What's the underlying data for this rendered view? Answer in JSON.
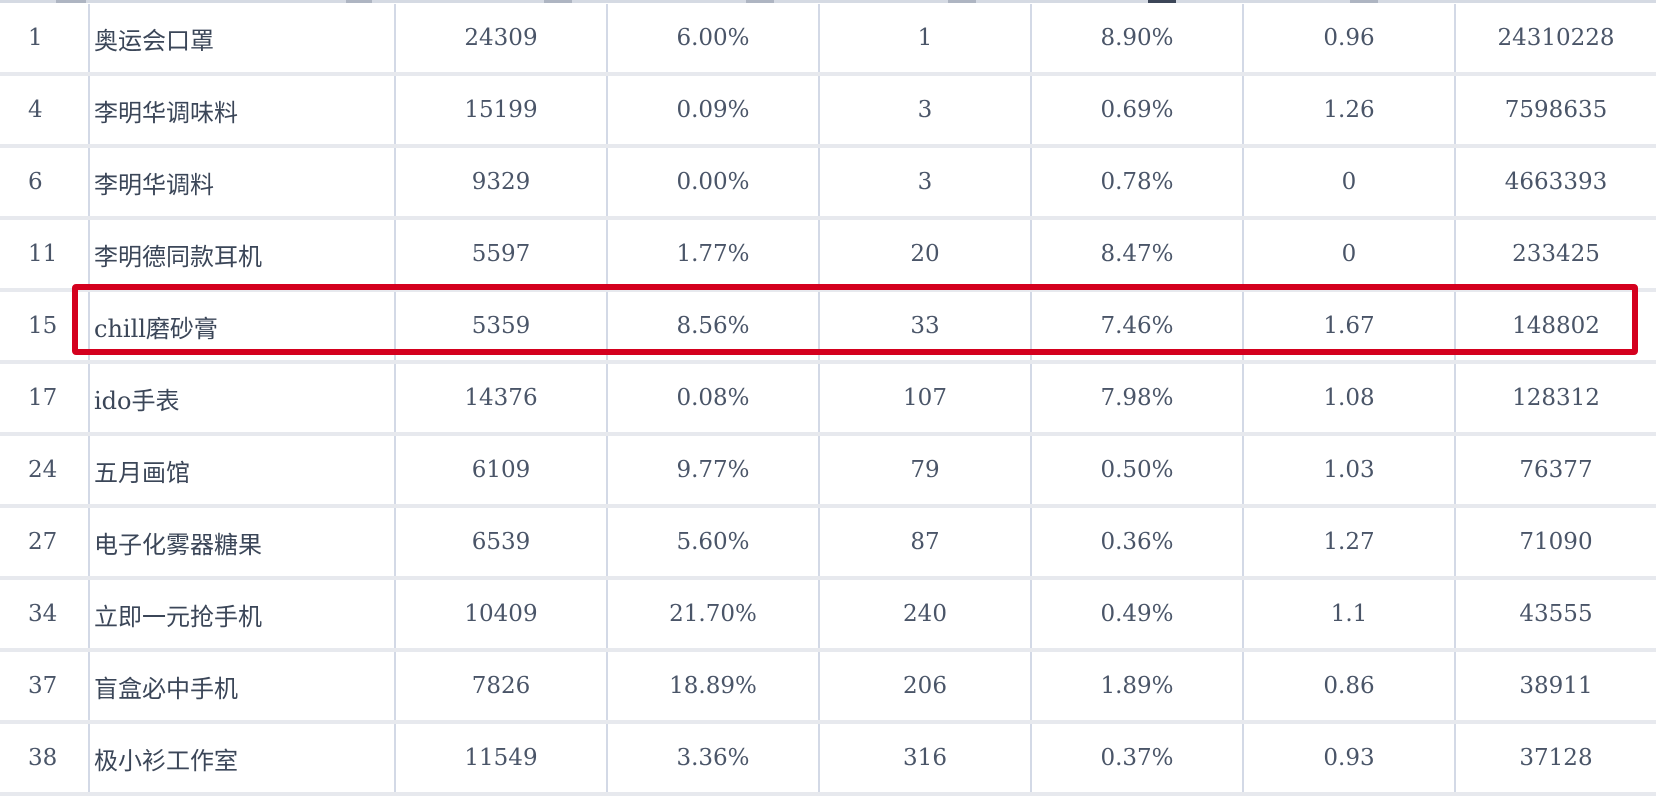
{
  "table": {
    "rows": [
      {
        "rank": "1",
        "keyword": "奥运会口罩",
        "c2": "24309",
        "c3": "6.00%",
        "c4": "1",
        "c5": "8.90%",
        "c6": "0.96",
        "c7": "24310228"
      },
      {
        "rank": "4",
        "keyword": "李明华调味料",
        "c2": "15199",
        "c3": "0.09%",
        "c4": "3",
        "c5": "0.69%",
        "c6": "1.26",
        "c7": "7598635"
      },
      {
        "rank": "6",
        "keyword": "李明华调料",
        "c2": "9329",
        "c3": "0.00%",
        "c4": "3",
        "c5": "0.78%",
        "c6": "0",
        "c7": "4663393"
      },
      {
        "rank": "11",
        "keyword": "李明德同款耳机",
        "c2": "5597",
        "c3": "1.77%",
        "c4": "20",
        "c5": "8.47%",
        "c6": "0",
        "c7": "233425"
      },
      {
        "rank": "15",
        "keyword": "chill磨砂膏",
        "c2": "5359",
        "c3": "8.56%",
        "c4": "33",
        "c5": "7.46%",
        "c6": "1.67",
        "c7": "148802"
      },
      {
        "rank": "17",
        "keyword": "ido手表",
        "c2": "14376",
        "c3": "0.08%",
        "c4": "107",
        "c5": "7.98%",
        "c6": "1.08",
        "c7": "128312"
      },
      {
        "rank": "24",
        "keyword": "五月画馆",
        "c2": "6109",
        "c3": "9.77%",
        "c4": "79",
        "c5": "0.50%",
        "c6": "1.03",
        "c7": "76377"
      },
      {
        "rank": "27",
        "keyword": "电子化雾器糖果",
        "c2": "6539",
        "c3": "5.60%",
        "c4": "87",
        "c5": "0.36%",
        "c6": "1.27",
        "c7": "71090"
      },
      {
        "rank": "34",
        "keyword": "立即一元抢手机",
        "c2": "10409",
        "c3": "21.70%",
        "c4": "240",
        "c5": "0.49%",
        "c6": "1.1",
        "c7": "43555"
      },
      {
        "rank": "37",
        "keyword": "盲盒必中手机",
        "c2": "7826",
        "c3": "18.89%",
        "c4": "206",
        "c5": "1.89%",
        "c6": "0.86",
        "c7": "38911"
      },
      {
        "rank": "38",
        "keyword": "极小衫工作室",
        "c2": "11549",
        "c3": "3.36%",
        "c4": "316",
        "c5": "0.37%",
        "c6": "0.93",
        "c7": "37128"
      }
    ]
  },
  "colors": {
    "highlight": "#d4001e",
    "grid_line": "#d3d9e6",
    "row_separator": "#e7e9ee",
    "text": "#4a5568"
  }
}
